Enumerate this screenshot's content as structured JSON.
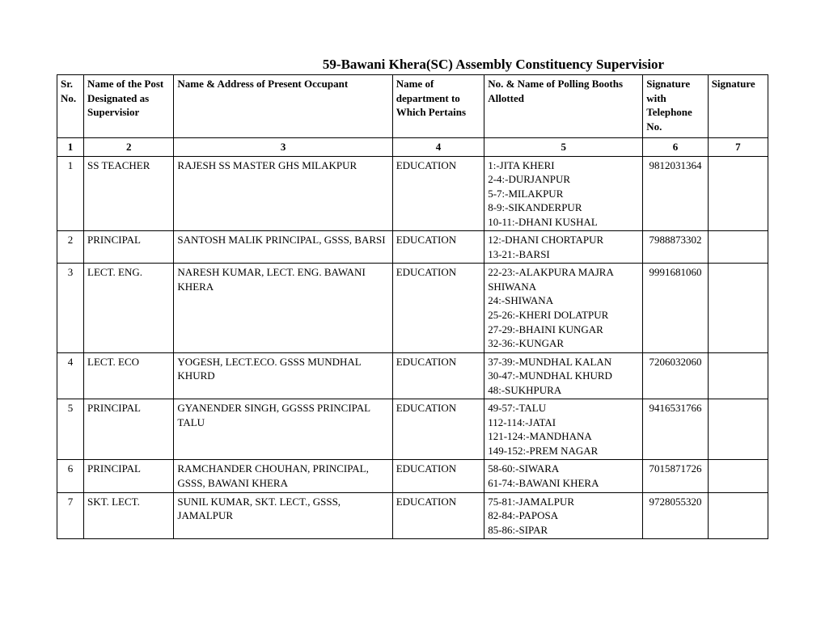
{
  "title": "59-Bawani Khera(SC) Assembly Constituency Supervisior",
  "headers": {
    "sr": "Sr. No.",
    "post": "Name of the Post Designated as Supervisior",
    "name": "Name & Address of Present Occupant",
    "dept": "Name of department to Which Pertains",
    "booths": "No. & Name of Polling Booths Allotted",
    "sig1": "Signature with Telephone No.",
    "sig2": "Signature"
  },
  "colnums": [
    "1",
    "2",
    "3",
    "4",
    "5",
    "6",
    "7"
  ],
  "rows": [
    {
      "sr": "1",
      "post": "SS TEACHER",
      "name": "RAJESH SS MASTER GHS MILAKPUR",
      "dept": "EDUCATION",
      "booths": "1:-JITA KHERI\n2-4:-DURJANPUR\n5-7:-MILAKPUR\n8-9:-SIKANDERPUR\n10-11:-DHANI KUSHAL",
      "tel": "9812031364",
      "sig": ""
    },
    {
      "sr": "2",
      "post": "PRINCIPAL",
      "name": "SANTOSH MALIK PRINCIPAL, GSSS, BARSI",
      "dept": "EDUCATION",
      "booths": "12:-DHANI CHORTAPUR\n13-21:-BARSI\n ",
      "tel": "7988873302",
      "sig": ""
    },
    {
      "sr": "3",
      "post": "LECT. ENG.",
      "name": "NARESH KUMAR, LECT. ENG.  BAWANI KHERA",
      "dept": "EDUCATION",
      "booths": "22-23:-ALAKPURA MAJRA SHIWANA\n24:-SHIWANA\n25-26:-KHERI DOLATPUR\n27-29:-BHAINI KUNGAR\n32-36:-KUNGAR",
      "tel": "9991681060",
      "sig": ""
    },
    {
      "sr": "4",
      "post": "LECT. ECO",
      "name": "YOGESH, LECT.ECO.  GSSS MUNDHAL KHURD",
      "dept": "EDUCATION",
      "booths": "37-39:-MUNDHAL KALAN\n30-47:-MUNDHAL KHURD\n48:-SUKHPURA",
      "tel": "7206032060",
      "sig": ""
    },
    {
      "sr": "5",
      "post": "PRINCIPAL",
      "name": "GYANENDER SINGH, GGSSS PRINCIPAL TALU",
      "dept": "EDUCATION",
      "booths": "49-57:-TALU\n112-114:-JATAI\n121-124:-MANDHANA\n149-152:-PREM NAGAR",
      "tel": "9416531766",
      "sig": ""
    },
    {
      "sr": "6",
      "post": "PRINCIPAL",
      "name": "RAMCHANDER CHOUHAN, PRINCIPAL, GSSS, BAWANI KHERA",
      "dept": "EDUCATION",
      "booths": "58-60:-SIWARA\n61-74:-BAWANI KHERA\n ",
      "tel": "7015871726",
      "sig": ""
    },
    {
      "sr": "7",
      "post": "SKT. LECT.",
      "name": "SUNIL  KUMAR, SKT. LECT., GSSS, JAMALPUR",
      "dept": "EDUCATION",
      "booths": "75-81:-JAMALPUR\n82-84:-PAPOSA\n85-86:-SIPAR",
      "tel": "9728055320",
      "sig": ""
    }
  ]
}
